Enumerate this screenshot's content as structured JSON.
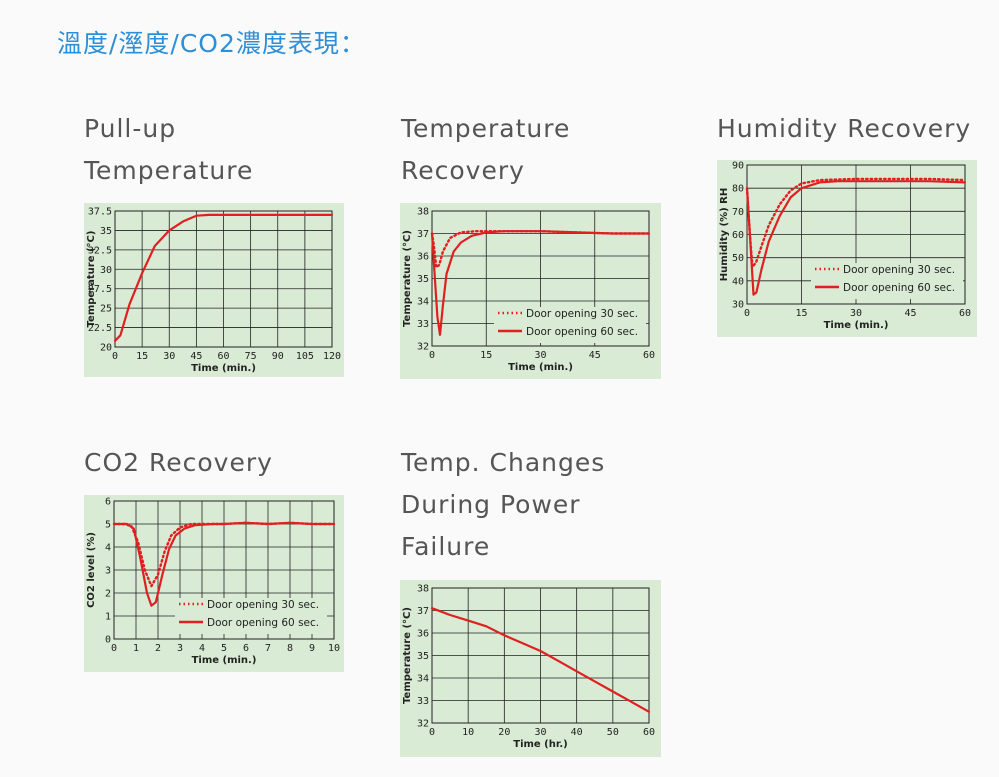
{
  "page": {
    "title": "溫度/溼度/CO2濃度表現："
  },
  "chart_data": [
    {
      "id": "pullup",
      "type": "line",
      "title_lines": [
        "Pull-up",
        "Temperature"
      ],
      "xlabel": "Time (min.)",
      "ylabel": "Temperature (°C)",
      "xlim": [
        0,
        120
      ],
      "ylim": [
        20,
        37.5
      ],
      "xticks": [
        0,
        15,
        30,
        45,
        60,
        75,
        90,
        105,
        120
      ],
      "xtick_labels": [
        "0",
        "15",
        "30",
        "45",
        "60",
        "75",
        "90",
        "105",
        "120"
      ],
      "yticks": [
        20,
        22.5,
        25,
        27.5,
        30,
        32.5,
        35,
        37.5
      ],
      "ytick_labels": [
        "20",
        "22.5",
        "25",
        "27.5",
        "30",
        "32.5",
        "35",
        "37.5"
      ],
      "grid": true,
      "series": [
        {
          "style": "solid",
          "color": "#e02020",
          "x": [
            0,
            3,
            8,
            15,
            22,
            30,
            38,
            45,
            52,
            60,
            75,
            90,
            105,
            120
          ],
          "y": [
            20.8,
            21.5,
            25.5,
            29.5,
            33,
            35,
            36.2,
            36.9,
            37.0,
            37.0,
            37.0,
            37.0,
            37.0,
            37.0
          ]
        }
      ]
    },
    {
      "id": "temprec",
      "type": "line",
      "title_lines": [
        "Temperature",
        "Recovery"
      ],
      "xlabel": "Time (min.)",
      "ylabel": "Temperature (°C)",
      "xlim": [
        0,
        60
      ],
      "ylim": [
        32,
        38
      ],
      "xticks": [
        0,
        15,
        30,
        45,
        60
      ],
      "xtick_labels": [
        "0",
        "15",
        "30",
        "45",
        "60"
      ],
      "yticks": [
        32,
        33,
        34,
        35,
        36,
        37,
        38
      ],
      "ytick_labels": [
        "32",
        "33",
        "34",
        "35",
        "36",
        "37",
        "38"
      ],
      "grid": true,
      "legend": "lower-right",
      "series": [
        {
          "name": "Door opening 30 sec.",
          "style": "dotted",
          "color": "#e02020",
          "x": [
            0,
            0.5,
            1.2,
            2,
            3,
            5,
            8,
            12,
            15,
            20,
            25,
            30,
            40,
            50,
            60
          ],
          "y": [
            37,
            36.5,
            35.5,
            35.6,
            36.2,
            36.8,
            37.05,
            37.1,
            37.1,
            37.1,
            37.1,
            37.1,
            37.05,
            37.0,
            37.0
          ]
        },
        {
          "name": "Door opening 60 sec.",
          "style": "solid",
          "color": "#e02020",
          "x": [
            0,
            0.8,
            1.5,
            2.2,
            3,
            4,
            6,
            8,
            11,
            15,
            20,
            25,
            30,
            40,
            50,
            60
          ],
          "y": [
            37,
            35,
            33.3,
            32.5,
            33.8,
            35.2,
            36.2,
            36.6,
            36.9,
            37.05,
            37.1,
            37.1,
            37.1,
            37.05,
            37.0,
            37.0
          ]
        }
      ]
    },
    {
      "id": "humrec",
      "type": "line",
      "title_lines": [
        "Humidity Recovery"
      ],
      "xlabel": "Time (min.)",
      "ylabel": "Humidity (%) RH",
      "xlim": [
        0,
        60
      ],
      "ylim": [
        30,
        90
      ],
      "xticks": [
        0,
        15,
        30,
        45,
        60
      ],
      "xtick_labels": [
        "0",
        "15",
        "30",
        "45",
        "60"
      ],
      "yticks": [
        30,
        40,
        50,
        60,
        70,
        80,
        90
      ],
      "ytick_labels": [
        "30",
        "40",
        "50",
        "60",
        "70",
        "80",
        "90"
      ],
      "grid": true,
      "legend": "lower-right",
      "series": [
        {
          "name": "Door opening 30 sec.",
          "style": "dotted",
          "color": "#e02020",
          "x": [
            0,
            0.8,
            1.5,
            2.5,
            4,
            6,
            9,
            12,
            15,
            20,
            30,
            40,
            50,
            60
          ],
          "y": [
            80,
            60,
            46,
            48,
            55,
            64,
            73,
            79,
            82,
            83.5,
            84,
            84,
            84,
            83.5
          ]
        },
        {
          "name": "Door opening 60 sec.",
          "style": "solid",
          "color": "#e02020",
          "x": [
            0,
            1,
            1.8,
            2.6,
            4,
            6,
            9,
            12,
            15,
            20,
            25,
            30,
            40,
            50,
            60
          ],
          "y": [
            80,
            55,
            34,
            35,
            45,
            57,
            68,
            76,
            80,
            82.5,
            83,
            83,
            83,
            83,
            82.5
          ]
        }
      ]
    },
    {
      "id": "co2rec",
      "type": "line",
      "title_lines": [
        "CO2 Recovery"
      ],
      "xlabel": "Time (min.)",
      "ylabel": "CO2 level (%)",
      "xlim": [
        0,
        10
      ],
      "ylim": [
        0,
        6
      ],
      "xticks": [
        0,
        1,
        2,
        3,
        4,
        5,
        6,
        7,
        8,
        9,
        10
      ],
      "xtick_labels": [
        "0",
        "1",
        "2",
        "3",
        "4",
        "5",
        "6",
        "7",
        "8",
        "9",
        "10"
      ],
      "yticks": [
        0,
        1,
        2,
        3,
        4,
        5,
        6
      ],
      "ytick_labels": [
        "0",
        "1",
        "2",
        "3",
        "4",
        "5",
        "6"
      ],
      "grid": true,
      "legend": "lower-right",
      "series": [
        {
          "name": "Door opening 30 sec.",
          "style": "dotted",
          "color": "#e02020",
          "x": [
            0,
            0.5,
            0.8,
            1.1,
            1.4,
            1.7,
            2.0,
            2.3,
            2.6,
            3.0,
            3.5,
            4.0,
            5.0,
            6.0,
            7.0,
            8.0,
            9.0,
            10.0
          ],
          "y": [
            5,
            5,
            4.9,
            4.2,
            3.0,
            2.3,
            2.8,
            3.8,
            4.5,
            4.85,
            5.0,
            5.0,
            5.0,
            5.05,
            5.0,
            5.05,
            5.0,
            5.0
          ]
        },
        {
          "name": "Door opening 60 sec.",
          "style": "solid",
          "color": "#e02020",
          "x": [
            0,
            0.6,
            0.9,
            1.2,
            1.5,
            1.7,
            1.9,
            2.2,
            2.5,
            2.8,
            3.2,
            3.7,
            4.5,
            5.0,
            6.0,
            7.0,
            8.0,
            9.0,
            10.0
          ],
          "y": [
            5,
            5,
            4.8,
            3.5,
            2.0,
            1.45,
            1.6,
            2.8,
            3.9,
            4.5,
            4.8,
            4.95,
            5.0,
            5.0,
            5.05,
            5.0,
            5.05,
            5.0,
            5.0
          ]
        }
      ]
    },
    {
      "id": "powerfail",
      "type": "line",
      "title_lines": [
        "Temp. Changes",
        "During Power",
        "Failure"
      ],
      "xlabel": "Time (hr.)",
      "ylabel": "Temperature (°C)",
      "xlim": [
        0,
        60
      ],
      "ylim": [
        32,
        38
      ],
      "xticks": [
        0,
        10,
        20,
        30,
        40,
        50,
        60
      ],
      "xtick_labels": [
        "0",
        "10",
        "20",
        "30",
        "40",
        "50",
        "60"
      ],
      "yticks": [
        32,
        33,
        34,
        35,
        36,
        37,
        38
      ],
      "ytick_labels": [
        "32",
        "33",
        "34",
        "35",
        "36",
        "37",
        "38"
      ],
      "grid": true,
      "series": [
        {
          "style": "solid",
          "color": "#e02020",
          "x": [
            0,
            5,
            10,
            15,
            20,
            25,
            30,
            35,
            40,
            45,
            50,
            55,
            60
          ],
          "y": [
            37.1,
            36.8,
            36.55,
            36.3,
            35.9,
            35.55,
            35.2,
            34.75,
            34.3,
            33.85,
            33.4,
            32.95,
            32.5
          ]
        }
      ]
    }
  ]
}
